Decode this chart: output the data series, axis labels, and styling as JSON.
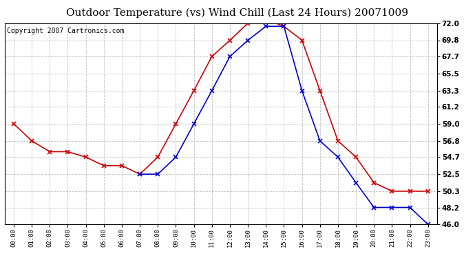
{
  "title": "Outdoor Temperature (vs) Wind Chill (Last 24 Hours) 20071009",
  "copyright": "Copyright 2007 Cartronics.com",
  "hours": [
    "00:00",
    "01:00",
    "02:00",
    "03:00",
    "04:00",
    "05:00",
    "06:00",
    "07:00",
    "08:00",
    "09:00",
    "10:00",
    "11:00",
    "12:00",
    "13:00",
    "14:00",
    "15:00",
    "16:00",
    "17:00",
    "18:00",
    "19:00",
    "20:00",
    "21:00",
    "22:00",
    "23:00"
  ],
  "temp": [
    59.0,
    56.8,
    55.4,
    55.4,
    54.7,
    53.6,
    53.6,
    52.5,
    54.7,
    59.0,
    63.3,
    67.7,
    69.8,
    72.0,
    72.5,
    71.6,
    69.8,
    63.3,
    56.8,
    54.7,
    51.4,
    50.3,
    50.3,
    50.3
  ],
  "windchill": [
    null,
    null,
    null,
    null,
    null,
    null,
    null,
    52.5,
    52.5,
    54.7,
    59.0,
    63.3,
    67.7,
    69.8,
    71.6,
    71.6,
    63.3,
    56.8,
    54.7,
    51.4,
    48.2,
    48.2,
    48.2,
    46.0
  ],
  "temp_color": "#cc0000",
  "windchill_color": "#0000cc",
  "background_color": "#ffffff",
  "grid_color": "#b0b0b0",
  "ylim": [
    46.0,
    72.0
  ],
  "yticks": [
    46.0,
    48.2,
    50.3,
    52.5,
    54.7,
    56.8,
    59.0,
    61.2,
    63.3,
    65.5,
    67.7,
    69.8,
    72.0
  ],
  "title_fontsize": 11,
  "copyright_fontsize": 7,
  "marker": "x",
  "marker_size": 4,
  "linewidth": 1.2
}
